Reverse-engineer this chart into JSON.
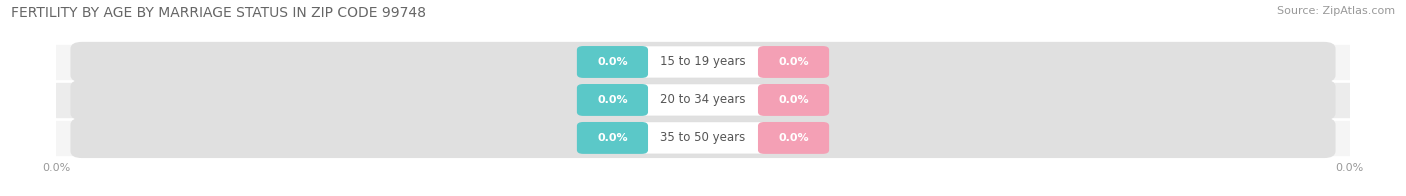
{
  "title": "FERTILITY BY AGE BY MARRIAGE STATUS IN ZIP CODE 99748",
  "source": "Source: ZipAtlas.com",
  "categories": [
    "15 to 19 years",
    "20 to 34 years",
    "35 to 50 years"
  ],
  "married_values": [
    0.0,
    0.0,
    0.0
  ],
  "unmarried_values": [
    0.0,
    0.0,
    0.0
  ],
  "married_color": "#5BC8C8",
  "unmarried_color": "#F4A0B5",
  "row_bg_light": "#F5F5F5",
  "row_bg_mid": "#ECECEC",
  "pill_bg_color": "#E0E0E0",
  "center_pill_color": "#FFFFFF",
  "title_fontsize": 10,
  "source_fontsize": 8,
  "label_fontsize": 8.5,
  "value_fontsize": 8,
  "tick_fontsize": 8,
  "legend_fontsize": 9,
  "title_color": "#666666",
  "source_color": "#999999",
  "tick_color": "#999999",
  "label_color": "#555555",
  "background_color": "#FFFFFF",
  "axis_label_left": "0.0%",
  "axis_label_right": "0.0%"
}
